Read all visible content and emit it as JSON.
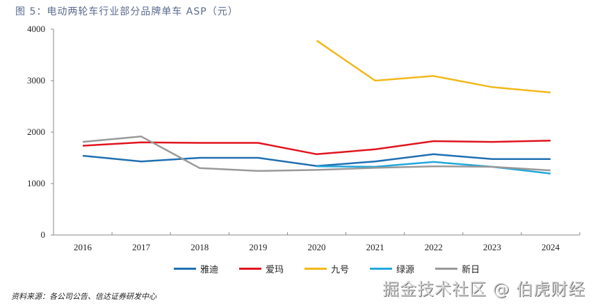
{
  "title": "图 5：电动两轮车行业部分品牌单车 ASP（元）",
  "source": "资料来源：各公司公告、信达证券研发中心",
  "watermark": "掘金技术社区 @ 伯虎财经",
  "chart_data": {
    "type": "line",
    "title": "电动两轮车行业部分品牌单车 ASP（元）",
    "xlabel": "",
    "ylabel": "",
    "categories": [
      "2016",
      "2017",
      "2018",
      "2019",
      "2020",
      "2021",
      "2022",
      "2023",
      "2024"
    ],
    "ylim": [
      0,
      4000
    ],
    "yticks": [
      "0",
      "1000",
      "2000",
      "3000",
      "4000"
    ],
    "grid": false,
    "legend_position": "bottom",
    "series": [
      {
        "name": "雅迪",
        "color": "#1f6fb2",
        "values": [
          1540,
          1430,
          1500,
          1500,
          1340,
          1430,
          1570,
          1475,
          1475
        ]
      },
      {
        "name": "爱玛",
        "color": "#e0141e",
        "values": [
          1735,
          1800,
          1790,
          1790,
          1570,
          1665,
          1825,
          1810,
          1835
        ]
      },
      {
        "name": "九号",
        "color": "#f2b81a",
        "values": [
          null,
          null,
          null,
          null,
          3780,
          3000,
          3090,
          2875,
          2770
        ]
      },
      {
        "name": "绿源",
        "color": "#22a7dc",
        "values": [
          null,
          null,
          null,
          null,
          1335,
          1325,
          1420,
          1325,
          1195
        ]
      },
      {
        "name": "新日",
        "color": "#999999",
        "values": [
          1810,
          1915,
          1300,
          1245,
          1265,
          1305,
          1335,
          1325,
          1255
        ]
      }
    ]
  }
}
